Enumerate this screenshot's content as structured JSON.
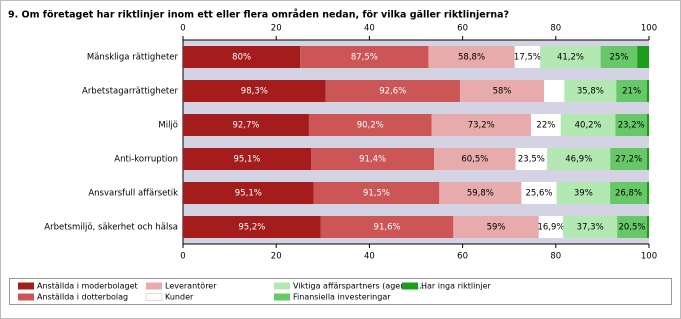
{
  "chart_data": {
    "type": "stacked-bar-horizontal-100",
    "title": "9. Om företaget har riktlinjer inom ett eller flera områden nedan, för vilka gäller riktlinjerna?",
    "categories": [
      "Mänskliga rättigheter",
      "Arbetstagarrättigheter",
      "Miljö",
      "Anti-korruption",
      "Ansvarsfull affärsetik",
      "Arbetsmiljö, säkerhet och hälsa"
    ],
    "xlim": [
      0,
      100
    ],
    "xticks": [
      0,
      20,
      40,
      60,
      80,
      100
    ],
    "series": [
      {
        "name": "Anställda i moderbolaget",
        "color": "#a51c1c",
        "values": [
          80,
          98.3,
          92.7,
          95.1,
          95.1,
          95.2
        ],
        "value_labels": [
          "80%",
          "98,3%",
          "92,7%",
          "95,1%",
          "95,1%",
          "95,2%"
        ]
      },
      {
        "name": "Anställda i dotterbolag",
        "color": "#cc5656",
        "values": [
          87.5,
          92.6,
          90.2,
          91.4,
          91.5,
          91.6
        ],
        "value_labels": [
          "87,5%",
          "92,6%",
          "90,2%",
          "91,4%",
          "91,5%",
          "91,6%"
        ]
      },
      {
        "name": "Leverantörer",
        "color": "#e8abab",
        "values": [
          58.8,
          58,
          73.2,
          60.5,
          59.8,
          59
        ],
        "value_labels": [
          "58,8%",
          "58%",
          "73,2%",
          "60,5%",
          "59,8%",
          "59%"
        ]
      },
      {
        "name": "Kunder",
        "color": "#ffffff",
        "values": [
          17.5,
          14,
          22,
          23.5,
          25.6,
          16.9
        ],
        "value_labels": [
          "17,5%",
          null,
          "22%",
          "23,5%",
          "25,6%",
          "16,9%"
        ]
      },
      {
        "name": "Viktiga affärspartners (agenter,...",
        "color": "#b3e8b3",
        "values": [
          41.2,
          35.8,
          40.2,
          46.9,
          39,
          37.3
        ],
        "value_labels": [
          "41,2%",
          "35,8%",
          "40,2%",
          "46,9%",
          "39%",
          "37,3%"
        ]
      },
      {
        "name": "Finansiella investeringar",
        "color": "#66c866",
        "values": [
          25,
          21,
          23.2,
          27.2,
          26.8,
          20.5
        ],
        "value_labels": [
          "25%",
          "21%",
          "23,2%",
          "27,2%",
          "26,8%",
          "20,5%"
        ]
      },
      {
        "name": "Har inga riktlinjer",
        "color": "#1c9e1c",
        "values": [
          8,
          1.5,
          1.5,
          1.5,
          1.5,
          1.5
        ],
        "value_labels": [
          null,
          null,
          null,
          null,
          null,
          null
        ]
      }
    ]
  }
}
